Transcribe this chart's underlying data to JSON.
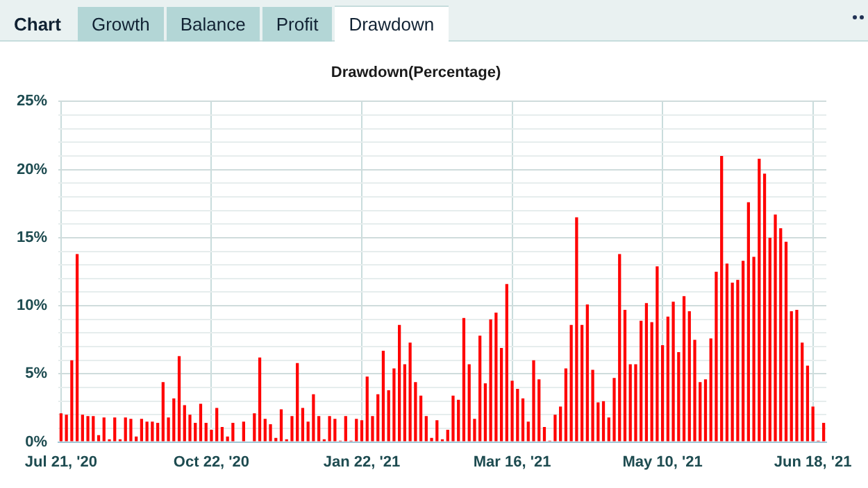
{
  "chart_data": {
    "type": "bar",
    "title": "Drawdown(Percentage)",
    "annotations": [
      "Chart",
      "Growth",
      "Balance",
      "Profit",
      "Drawdown"
    ],
    "categories": [
      "Jul 21, '20",
      null,
      null,
      null,
      null,
      null,
      null,
      null,
      null,
      null,
      null,
      null,
      null,
      null,
      null,
      null,
      null,
      null,
      null,
      null,
      null,
      null,
      null,
      null,
      null,
      null,
      null,
      null,
      "Oct 22, '20",
      null,
      null,
      null,
      null,
      null,
      null,
      null,
      null,
      null,
      null,
      null,
      null,
      null,
      null,
      null,
      null,
      null,
      null,
      null,
      null,
      null,
      null,
      null,
      null,
      null,
      null,
      null,
      "Jan 22, '21",
      null,
      null,
      null,
      null,
      null,
      null,
      null,
      null,
      null,
      null,
      null,
      null,
      null,
      null,
      null,
      null,
      null,
      null,
      null,
      null,
      null,
      null,
      null,
      null,
      null,
      null,
      null,
      "Mar 16, '21",
      null,
      null,
      null,
      null,
      null,
      null,
      null,
      null,
      null,
      null,
      null,
      null,
      null,
      null,
      null,
      null,
      null,
      null,
      null,
      null,
      null,
      null,
      null,
      null,
      null,
      null,
      null,
      "May 10, '21",
      null,
      null,
      null,
      null,
      null,
      null,
      null,
      null,
      null,
      null,
      null,
      null,
      null,
      null,
      null,
      null,
      null,
      null,
      null,
      null,
      null,
      null,
      null,
      null,
      null,
      null,
      null,
      "Jun 18, '21",
      null,
      null
    ],
    "values": [
      2.1,
      2.0,
      6.0,
      13.8,
      2.0,
      1.9,
      1.9,
      0.5,
      1.8,
      0.2,
      1.8,
      0.2,
      1.8,
      1.7,
      0.4,
      1.7,
      1.5,
      1.5,
      1.4,
      4.4,
      1.8,
      3.2,
      6.3,
      2.7,
      2.0,
      1.4,
      2.8,
      1.4,
      0.9,
      2.5,
      1.1,
      0.4,
      1.4,
      0,
      1.5,
      0,
      2.1,
      6.2,
      1.7,
      1.3,
      0.3,
      2.4,
      0.2,
      1.9,
      5.8,
      2.5,
      1.5,
      3.5,
      1.9,
      0.2,
      1.9,
      1.7,
      0.1,
      1.9,
      0.1,
      1.7,
      1.6,
      4.8,
      1.9,
      3.5,
      6.7,
      3.8,
      5.4,
      8.6,
      5.7,
      7.3,
      4.4,
      3.4,
      1.9,
      0.3,
      1.6,
      0.2,
      0.9,
      3.4,
      3.1,
      9.1,
      5.7,
      1.7,
      7.8,
      4.3,
      9.0,
      9.5,
      6.9,
      11.6,
      4.5,
      3.9,
      3.2,
      1.5,
      6.0,
      4.6,
      1.1,
      0.1,
      2.0,
      2.6,
      5.4,
      8.6,
      16.5,
      8.6,
      10.1,
      5.3,
      2.9,
      3.0,
      1.8,
      4.7,
      13.8,
      9.7,
      5.7,
      5.7,
      8.9,
      10.2,
      8.8,
      12.9,
      7.1,
      9.2,
      10.3,
      6.6,
      10.7,
      9.6,
      7.5,
      4.4,
      4.6,
      7.6,
      12.5,
      21.0,
      13.1,
      11.7,
      11.9,
      13.3,
      17.6,
      13.6,
      20.8,
      19.7,
      15.0,
      16.7,
      15.7,
      14.7,
      9.6,
      9.7,
      7.3,
      5.6,
      2.6,
      0.1,
      1.4
    ],
    "color": "#ff0000",
    "ylim": [
      0,
      25
    ],
    "yticks": [
      {
        "value": 0,
        "label": "0%"
      },
      {
        "value": 1,
        "label": null
      },
      {
        "value": 2,
        "label": null
      },
      {
        "value": 3,
        "label": null
      },
      {
        "value": 4,
        "label": null
      },
      {
        "value": 5,
        "label": "5%"
      },
      {
        "value": 6,
        "label": null
      },
      {
        "value": 7,
        "label": null
      },
      {
        "value": 8,
        "label": null
      },
      {
        "value": 9,
        "label": null
      },
      {
        "value": 10,
        "label": "10%"
      },
      {
        "value": 11,
        "label": null
      },
      {
        "value": 12,
        "label": null
      },
      {
        "value": 13,
        "label": null
      },
      {
        "value": 14,
        "label": null
      },
      {
        "value": 15,
        "label": "15%"
      },
      {
        "value": 16,
        "label": null
      },
      {
        "value": 17,
        "label": null
      },
      {
        "value": 18,
        "label": null
      },
      {
        "value": 19,
        "label": null
      },
      {
        "value": 20,
        "label": "20%"
      },
      {
        "value": 21,
        "label": null
      },
      {
        "value": 22,
        "label": null
      },
      {
        "value": 23,
        "label": null
      },
      {
        "value": 24,
        "label": null
      },
      {
        "value": 25,
        "label": "25%"
      }
    ],
    "grid": true
  }
}
